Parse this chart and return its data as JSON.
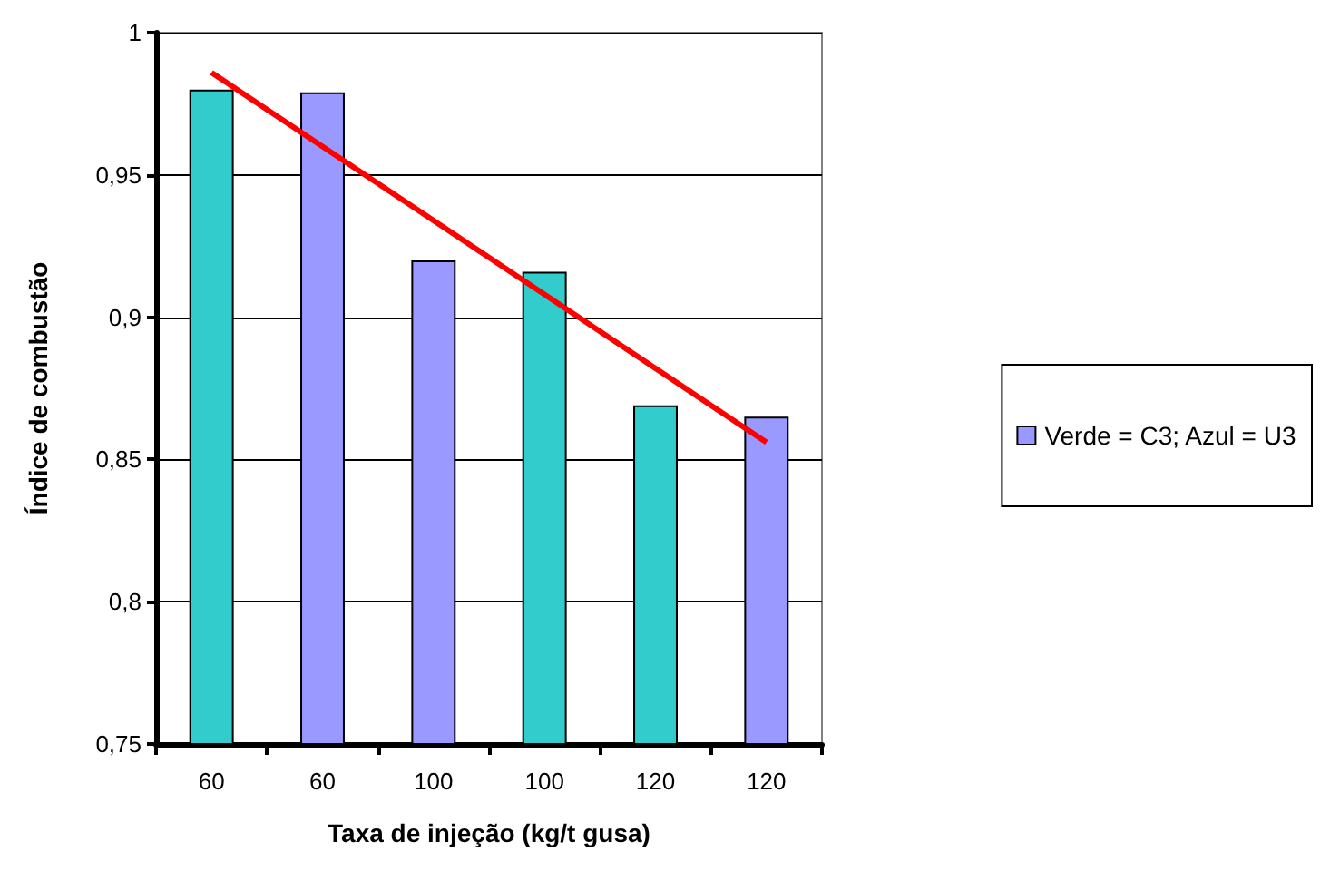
{
  "chart_data": {
    "type": "bar",
    "xlabel": "Taxa de injeção (kg/t gusa)",
    "ylabel": "Índice de combustão",
    "categories": [
      "60",
      "60",
      "100",
      "100",
      "120",
      "120"
    ],
    "series": [
      {
        "name": "Verde = C3; Azul = U3",
        "color": "#9999ff",
        "colors": [
          "#33cccc",
          "#9999ff",
          "#9999ff",
          "#33cccc",
          "#33cccc",
          "#9999ff"
        ],
        "values": [
          0.98,
          0.979,
          0.92,
          0.916,
          0.869,
          0.865
        ]
      },
      {
        "type": "line",
        "color": "#ff0000",
        "values": [
          0.986,
          0.96,
          0.934,
          0.908,
          0.882,
          0.856
        ]
      }
    ],
    "ylim": [
      0.75,
      1
    ],
    "yticks": [
      {
        "value": 0.75,
        "label": "0,75"
      },
      {
        "value": 0.8,
        "label": "0,8"
      },
      {
        "value": 0.85,
        "label": "0,85"
      },
      {
        "value": 0.9,
        "label": "0,9"
      },
      {
        "value": 0.95,
        "label": "0,95"
      },
      {
        "value": 1,
        "label": "1"
      }
    ],
    "grid": "y",
    "legend": "right",
    "marker": "none"
  }
}
